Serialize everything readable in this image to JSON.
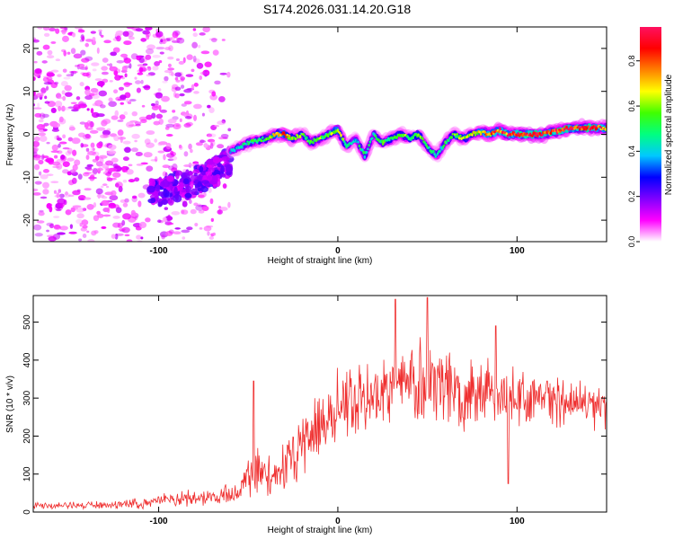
{
  "page_title": "S174.2026.031.14.20.G18",
  "colors": {
    "line": "#ef2f2f",
    "axis": "#000000",
    "colormap": [
      "#ffffff",
      "#ff00ff",
      "#7f00ff",
      "#0000ff",
      "#00c8ff",
      "#00ff80",
      "#40ff00",
      "#ffff00",
      "#ff8000",
      "#ff0000",
      "#ff1060"
    ]
  },
  "chart_data": [
    {
      "type": "heatmap",
      "title": "S174.2026.031.14.20.G18",
      "xlabel": "Height of straight line (km)",
      "ylabel": "Frequency (Hz)",
      "xlim": [
        -170,
        150
      ],
      "ylim": [
        -25,
        25
      ],
      "xticks": [
        -100,
        0,
        100
      ],
      "yticks": [
        -20,
        -10,
        0,
        10,
        20
      ],
      "xtick_labels": [
        "-100",
        "0",
        "100"
      ],
      "ytick_labels": [
        "-20",
        "-10",
        "0",
        "10",
        "20"
      ],
      "colorbar": {
        "label": "Normalized spectral amplitude",
        "range": [
          0,
          0.95
        ],
        "ticks": [
          0.0,
          0.2,
          0.4,
          0.6,
          0.8
        ],
        "tick_labels": [
          "0.0",
          "0.2",
          "0.4",
          "0.6",
          "0.8"
        ]
      },
      "ridge": {
        "x": [
          -60,
          -55,
          -50,
          -45,
          -40,
          -35,
          -30,
          -25,
          -20,
          -15,
          -10,
          -5,
          0,
          5,
          10,
          15,
          20,
          25,
          30,
          35,
          40,
          45,
          50,
          55,
          60,
          65,
          70,
          75,
          80,
          85,
          90,
          95,
          100,
          105,
          110,
          115,
          120,
          125,
          130,
          135,
          140,
          145,
          150
        ],
        "frequency_hz": [
          -4,
          -3,
          -2,
          -1.5,
          -1,
          0,
          0,
          -1,
          0,
          -2,
          -1,
          0,
          1,
          -3,
          -1,
          -5,
          0,
          -2,
          -1,
          0,
          -1,
          0,
          -3,
          -5,
          -2,
          0,
          -1,
          0,
          0.5,
          0,
          1,
          0,
          0,
          0,
          0,
          0,
          0.5,
          1,
          1.5,
          1.5,
          1.5,
          1.5,
          1.5
        ],
        "amplitude": [
          0.35,
          0.4,
          0.45,
          0.5,
          0.55,
          0.7,
          0.75,
          0.6,
          0.55,
          0.5,
          0.55,
          0.5,
          0.7,
          0.45,
          0.4,
          0.5,
          0.45,
          0.5,
          0.55,
          0.6,
          0.55,
          0.6,
          0.5,
          0.45,
          0.5,
          0.6,
          0.6,
          0.65,
          0.7,
          0.75,
          0.8,
          0.85,
          0.88,
          0.9,
          0.9,
          0.88,
          0.9,
          0.9,
          0.9,
          0.85,
          0.85,
          0.85,
          0.8
        ]
      },
      "trend_band": {
        "x": [
          -105,
          -100,
          -95,
          -90,
          -85,
          -80,
          -75,
          -70,
          -65,
          -60
        ],
        "frequency_hz": [
          -13,
          -14,
          -13,
          -12,
          -12,
          -11,
          -10,
          -9,
          -8,
          -6
        ],
        "amplitude": 0.18
      },
      "noise_region": {
        "x_range": [
          -170,
          -60
        ],
        "f_range": [
          -25,
          25
        ],
        "amplitude": 0.1
      }
    },
    {
      "type": "line",
      "xlabel": "Height of straight line (km)",
      "ylabel": "SNR (10 * v/v)",
      "xlim": [
        -170,
        150
      ],
      "ylim": [
        0,
        570
      ],
      "xticks": [
        -100,
        0,
        100
      ],
      "yticks": [
        0,
        100,
        200,
        300,
        400,
        500
      ],
      "xtick_labels": [
        "-100",
        "0",
        "100"
      ],
      "ytick_labels": [
        "0",
        "100",
        "200",
        "300",
        "400",
        "500"
      ],
      "x": [
        -170,
        -150,
        -130,
        -110,
        -100,
        -90,
        -80,
        -70,
        -60,
        -55,
        -50,
        -45,
        -40,
        -35,
        -30,
        -25,
        -20,
        -15,
        -10,
        -5,
        0,
        5,
        10,
        15,
        20,
        25,
        30,
        35,
        40,
        45,
        50,
        55,
        60,
        65,
        70,
        75,
        80,
        85,
        90,
        95,
        100,
        105,
        110,
        115,
        120,
        125,
        130,
        135,
        140,
        145,
        150
      ],
      "y": [
        18,
        18,
        20,
        22,
        30,
        35,
        38,
        40,
        45,
        55,
        90,
        110,
        90,
        95,
        120,
        150,
        175,
        210,
        230,
        250,
        275,
        280,
        290,
        300,
        310,
        315,
        330,
        340,
        335,
        340,
        345,
        340,
        330,
        320,
        320,
        315,
        320,
        310,
        310,
        305,
        300,
        300,
        295,
        300,
        290,
        295,
        290,
        285,
        280,
        280,
        285
      ],
      "spread": [
        10,
        10,
        10,
        12,
        15,
        18,
        20,
        20,
        25,
        30,
        60,
        70,
        50,
        50,
        55,
        70,
        80,
        90,
        90,
        90,
        100,
        95,
        95,
        95,
        95,
        100,
        100,
        105,
        105,
        110,
        110,
        105,
        100,
        95,
        90,
        90,
        85,
        85,
        80,
        80,
        75,
        70,
        70,
        65,
        65,
        60,
        60,
        60,
        55,
        55,
        55
      ],
      "peaks": [
        {
          "x": -47,
          "y": 345
        },
        {
          "x": 32,
          "y": 560
        },
        {
          "x": 50,
          "y": 565
        },
        {
          "x": 88,
          "y": 490
        },
        {
          "x": 95,
          "y": 75
        }
      ]
    }
  ]
}
